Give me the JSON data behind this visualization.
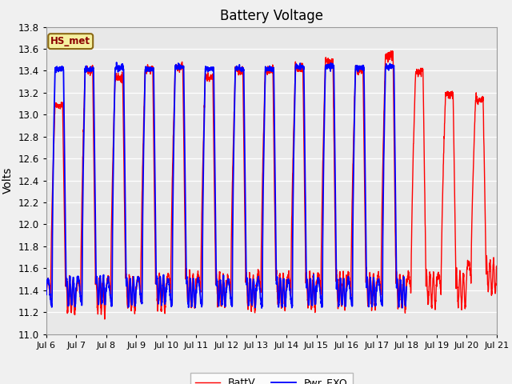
{
  "title": "Battery Voltage",
  "ylabel": "Volts",
  "ylim": [
    11.0,
    13.8
  ],
  "yticks": [
    11.0,
    11.2,
    11.4,
    11.6,
    11.8,
    12.0,
    12.2,
    12.4,
    12.6,
    12.8,
    13.0,
    13.2,
    13.4,
    13.6,
    13.8
  ],
  "xtick_labels": [
    "Jul 6",
    "Jul 7",
    "Jul 8",
    "Jul 9",
    "Jul 10",
    "Jul 11",
    "Jul 12",
    "Jul 13",
    "Jul 14",
    "Jul 15",
    "Jul 16",
    "Jul 17",
    "Jul 18",
    "Jul 19",
    "Jul 20",
    "Jul 21"
  ],
  "legend_labels": [
    "BattV",
    "Pwr_EXO"
  ],
  "line_colors": [
    "red",
    "blue"
  ],
  "station_label": "HS_met",
  "plot_bg_color": "#e8e8e8",
  "fig_bg_color": "#f0f0f0",
  "figsize": [
    6.4,
    4.8
  ],
  "dpi": 100
}
